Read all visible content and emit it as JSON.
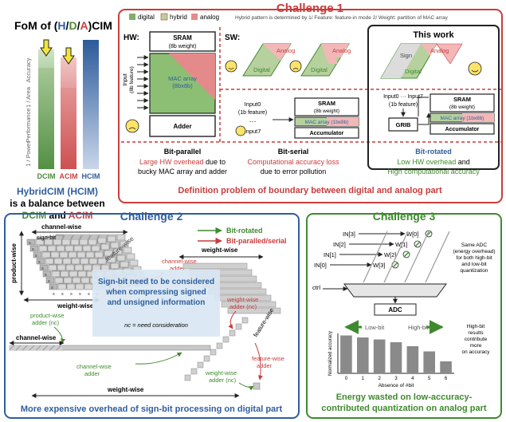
{
  "fom": {
    "title_prefix": "FoM of (",
    "title_h": "H",
    "title_slash1": "/",
    "title_d": "D",
    "title_slash2": "/",
    "title_a": "A",
    "title_suffix": ")CIM",
    "axis_labels": [
      "Accuracy",
      "1 / Area",
      "Performance",
      "1 / Power"
    ],
    "bars": [
      {
        "label": "DCIM",
        "color": "#4e8a3a"
      },
      {
        "label": "ACIM",
        "color": "#c94040"
      },
      {
        "label": "HCIM",
        "color": "#2f5e9e"
      }
    ],
    "summary_line1_a": "HybridCIM (HCIM)",
    "summary_line2": "is a balance between",
    "summary_line3_d": "DCIM",
    "summary_line3_and": " and ",
    "summary_line3_a": "ACIM"
  },
  "challenge1": {
    "title": "Challenge 1",
    "legend": [
      "digital",
      "hybrid",
      "analog"
    ],
    "hybrid_note": "Hybrid pattern  is determined by 1/ Feature: feature-in mode 2/ Weight: partition of MAC array",
    "hw_label": "HW:",
    "sw_label": "SW:",
    "this_work": "This work",
    "sram_8b": "SRAM",
    "sram_8b_sub": "(8b weight)",
    "input_label": "Input",
    "input_sub": "(8b feature)",
    "mac_array": "MAC array",
    "mac_array_sub": "(8bx8b)",
    "adder": "Adder",
    "sw_shape_analog": "Analog",
    "sw_shape_digital": "Digital",
    "tw_sign": "Sign",
    "tw_analog": "Analog",
    "tw_digital": "Digital",
    "input0": "Input0",
    "input_1b": "(1b feature)",
    "dots": "···",
    "input7": "Input7",
    "sram_mid": "SRAM",
    "sram_mid_sub": "(8b weight)",
    "mac_1x8": "MAC array (1bx8b)",
    "accumulator": "Accumulator",
    "tw_input": "Input0 ··· Input7",
    "tw_input_sub": "(1b feature)",
    "grib": "GRIB",
    "col1_title": "Bit-parallel",
    "col1_red": "Large HW overhead",
    "col1_rest1": " due to",
    "col1_line2": "bucky MAC array and adder",
    "col2_title": "Bit-serial",
    "col2_red": "Computational accuracy loss",
    "col2_line2": "due to error pollution",
    "col3_title": "Bit-rotated",
    "col3_green1": "Low HW overhead",
    "col3_and": " and",
    "col3_green2": "High computational accuracy",
    "definition": "Definition problem of boundary between digital and analog part"
  },
  "challenge2": {
    "title": "Challenge 2",
    "legend_green": "Bit-rotated",
    "legend_red": "Bit-paralled/serial",
    "channel_wise": "channel-wise",
    "sign_bit": "sign-bit",
    "product_wise": "product-wise",
    "feature_wise": "feature-wise",
    "weight_wise": "weight-wise",
    "weight_wise_top": "weight-wise",
    "s": "s",
    "cw_adder": "channel-wise",
    "cw_adder2": "adder",
    "note1": "Sign-bit need to be considered",
    "note2": "when compressing signed",
    "note3": "and unsigned information",
    "nc_note": "nc = need consideration",
    "pw_adder": "product-wise",
    "pw_adder2": "adder (nc)",
    "ww_adder": "weight-wise",
    "ww_adder2": "adder (nc)",
    "feature_wise2": "feature-wise",
    "channel_wise2": "channel-wise",
    "cw_adder_b": "channel-wise",
    "cw_adder_b2": "adder",
    "fw_adder": "feature-wise",
    "fw_adder2": "adder",
    "ww_adder_b": "weight-wise",
    "ww_adder_b2": "adder (nc)",
    "weight_wise_bottom": "weight-wise",
    "footer": "More expensive overhead of sign-bit  processing on digital part"
  },
  "challenge3": {
    "title": "Challenge 3",
    "in_labels": [
      "IN[3]",
      "IN[2]",
      "IN[1]",
      "IN[0]"
    ],
    "w_labels": [
      "W[0]",
      "W[1]",
      "W[2]",
      "W[3]"
    ],
    "ctrl": "ctrl",
    "adc": "ADC",
    "same_adc1": "Same ADC",
    "same_adc2": "(energy overhead)",
    "same_adc3": "for both high-bit",
    "same_adc4": "and low-bit",
    "same_adc5": "quantization",
    "low_bit": "Low-bit",
    "high_bit": "High-bit",
    "hb_note1": "High-bit",
    "hb_note2": "results",
    "hb_note3": "contribute",
    "hb_note4": "more",
    "hb_note5": "on accuracy",
    "footer1": "Energy wasted on low-accuracy-",
    "footer2": "contributed quantization on analog part"
  },
  "chart_data": {
    "type": "bar",
    "categories": [
      "0",
      "1",
      "2",
      "3",
      "4",
      "5",
      "6"
    ],
    "values": [
      0.95,
      0.9,
      0.85,
      0.78,
      0.68,
      0.55,
      0.3
    ],
    "xlabel": "Absence of #bit",
    "ylabel": "Normalized accuracy",
    "ylim": [
      0,
      1
    ],
    "bar_color": "#8a8a8a"
  }
}
